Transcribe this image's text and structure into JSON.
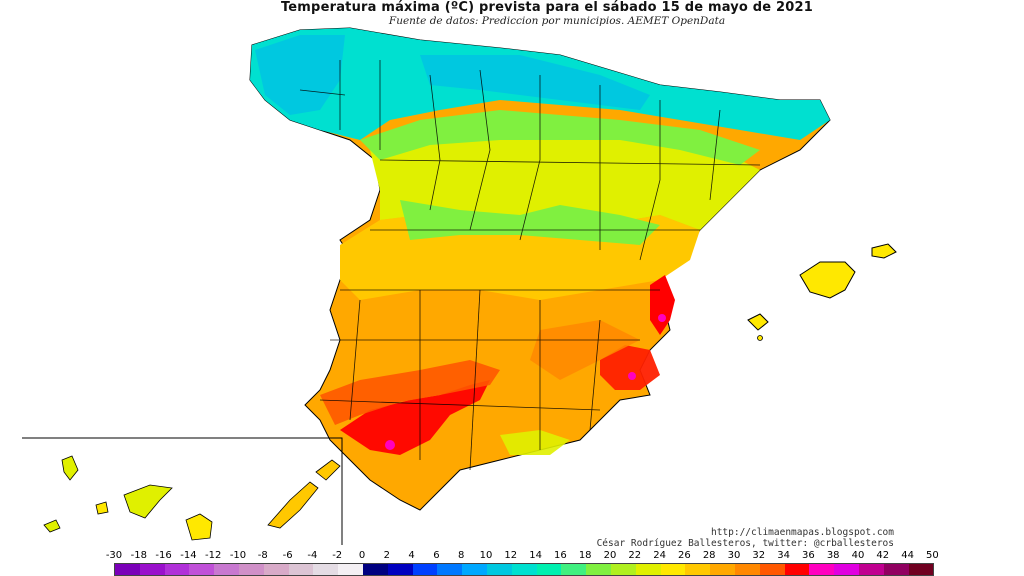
{
  "title": "Temperatura máxima (ºC) prevista para el sábado 15 de mayo de 2021",
  "subtitle": "Fuente de datos: Prediccion por municipios. AEMET OpenData",
  "credits": {
    "blog": "http://climaenmapas.blogspot.com",
    "author": "César Rodríguez Ballesteros, twitter: @crballesteros"
  },
  "legend": {
    "labels": [
      "-30",
      "-18",
      "-16",
      "-14",
      "-12",
      "-10",
      "-8",
      "-6",
      "-4",
      "-2",
      "0",
      "2",
      "4",
      "6",
      "8",
      "10",
      "12",
      "14",
      "16",
      "18",
      "20",
      "22",
      "24",
      "26",
      "28",
      "30",
      "32",
      "34",
      "36",
      "38",
      "40",
      "42",
      "44",
      "50"
    ],
    "colors": [
      "#7a00b8",
      "#9a10cc",
      "#b030d8",
      "#c050d8",
      "#c878d0",
      "#d090c8",
      "#d8aac8",
      "#dcc4d4",
      "#e4dce4",
      "#f4f0f4",
      "#000080",
      "#0000c0",
      "#0040ff",
      "#0078ff",
      "#00a8ff",
      "#00c8e0",
      "#00e0d0",
      "#00f0b0",
      "#40f080",
      "#80f040",
      "#b0f020",
      "#e0f000",
      "#ffe800",
      "#ffc800",
      "#ffa800",
      "#ff8800",
      "#ff5800",
      "#ff0000",
      "#ff00c0",
      "#e000e0",
      "#c00090",
      "#900060",
      "#700020"
    ]
  }
}
